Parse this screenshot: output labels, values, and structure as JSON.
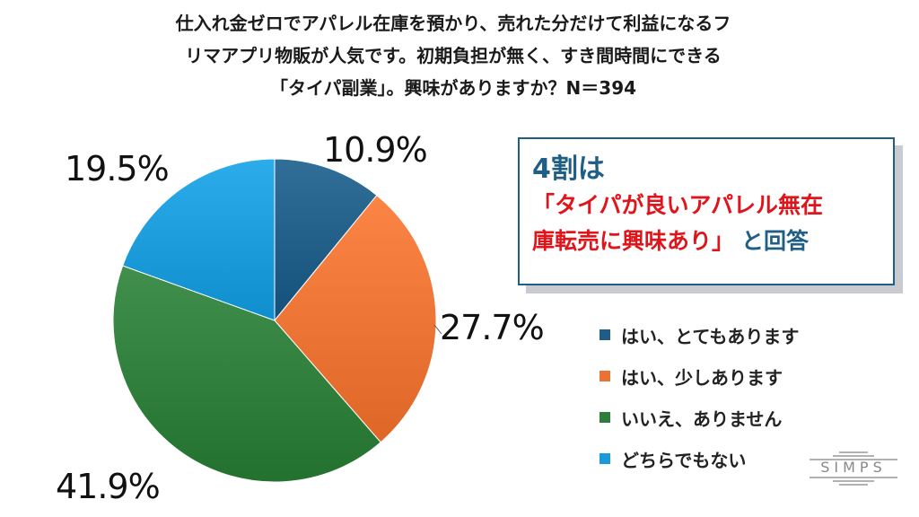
{
  "title_lines": [
    "仕入れ金ゼロでアパレル在庫を預かり、売れた分だけて利益になるフ",
    "リマアプリ物販が人気です。初期負担が無く、すき間時間にできる",
    "「タイパ副業」。興味がありますか？N＝394"
  ],
  "callout": {
    "head": "4割は",
    "line1_red": "「タイパが良いアパレル無在",
    "line2_red": "庫転売に興味あり」",
    "line2_blue": "と回答"
  },
  "logo": "SIMPS",
  "chart_data": {
    "type": "pie",
    "start_angle_deg": 0,
    "direction": "clockwise",
    "series": [
      {
        "name": "はい、とてもあります",
        "value": 10.9,
        "label": "10.9%",
        "color": "#1f5c86"
      },
      {
        "name": "はい、少しあります",
        "value": 27.7,
        "label": "27.7%",
        "color": "#ea7233"
      },
      {
        "name": "いいえ、ありません",
        "value": 41.9,
        "label": "41.9%",
        "color": "#2f7d3a"
      },
      {
        "name": "どちらでもない",
        "value": 19.5,
        "label": "19.5%",
        "color": "#1a9ad8"
      }
    ],
    "legend_position": "right"
  }
}
